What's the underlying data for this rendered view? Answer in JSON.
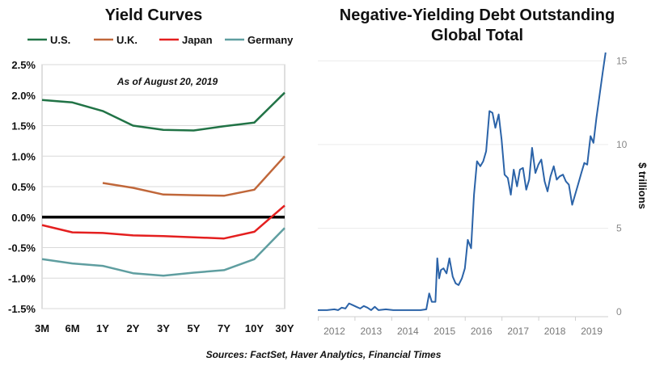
{
  "chart_data": [
    {
      "type": "line",
      "title": "Yield Curves",
      "annotation": "As of August 20, 2019",
      "categories": [
        "3M",
        "6M",
        "1Y",
        "2Y",
        "3Y",
        "5Y",
        "7Y",
        "10Y",
        "30Y"
      ],
      "ylim": [
        -1.5,
        2.5
      ],
      "yticks": [
        2.5,
        2.0,
        1.5,
        1.0,
        0.5,
        0.0,
        -0.5,
        -1.0,
        -1.5
      ],
      "ytick_labels": [
        "2.5%",
        "2.0%",
        "1.5%",
        "1.0%",
        "0.5%",
        "0.0%",
        "-0.5%",
        "-1.0%",
        "-1.5%"
      ],
      "grid": true,
      "legend_position": "top",
      "series": [
        {
          "name": "U.S.",
          "color": "#217346",
          "values": [
            1.92,
            1.88,
            1.74,
            1.5,
            1.43,
            1.42,
            1.49,
            1.55,
            2.04
          ]
        },
        {
          "name": "U.K.",
          "color": "#c0673a",
          "values": [
            null,
            null,
            0.56,
            0.48,
            0.37,
            0.36,
            0.35,
            0.45,
            1.0
          ]
        },
        {
          "name": "Japan",
          "color": "#e41f1f",
          "values": [
            -0.13,
            -0.25,
            -0.26,
            -0.3,
            -0.31,
            -0.33,
            -0.35,
            -0.24,
            0.19
          ]
        },
        {
          "name": "Germany",
          "color": "#5f9ea0",
          "values": [
            -0.69,
            -0.76,
            -0.8,
            -0.92,
            -0.96,
            -0.91,
            -0.87,
            -0.69,
            -0.18
          ]
        }
      ]
    },
    {
      "type": "line",
      "title": "Negative-Yielding Debt Outstanding\nGlobal Total",
      "title_lines": [
        "Negative-Yielding Debt Outstanding",
        "Global Total"
      ],
      "ylabel": "$ trillions",
      "ylim": [
        0,
        15.5
      ],
      "yticks": [
        0,
        5,
        10,
        15
      ],
      "xlim": [
        2011.75,
        2019.65
      ],
      "xticks": [
        "2012",
        "2013",
        "2014",
        "2015",
        "2016",
        "2017",
        "2018",
        "2019"
      ],
      "color": "#2b63a8",
      "series": [
        {
          "x": [
            2011.75,
            2012.0,
            2012.2,
            2012.3,
            2012.4,
            2012.5,
            2012.6,
            2012.7,
            2012.8,
            2012.9,
            2013.0,
            2013.1,
            2013.2,
            2013.3,
            2013.4,
            2013.6,
            2013.8,
            2014.0,
            2014.2,
            2014.4,
            2014.55,
            2014.7,
            2014.78,
            2014.85,
            2014.95,
            2015.0,
            2015.05,
            2015.1,
            2015.17,
            2015.25,
            2015.33,
            2015.42,
            2015.5,
            2015.58,
            2015.67,
            2015.75,
            2015.83,
            2015.92,
            2016.0,
            2016.08,
            2016.17,
            2016.25,
            2016.33,
            2016.42,
            2016.5,
            2016.58,
            2016.67,
            2016.75,
            2016.83,
            2016.92,
            2017.0,
            2017.08,
            2017.17,
            2017.25,
            2017.33,
            2017.42,
            2017.5,
            2017.58,
            2017.67,
            2017.75,
            2017.83,
            2017.92,
            2018.0,
            2018.08,
            2018.17,
            2018.25,
            2018.33,
            2018.42,
            2018.5,
            2018.58,
            2018.67,
            2018.75,
            2018.83,
            2018.92,
            2019.0,
            2019.08,
            2019.17,
            2019.25,
            2019.33,
            2019.42,
            2019.5,
            2019.58
          ],
          "y": [
            0.1,
            0.1,
            0.15,
            0.1,
            0.25,
            0.2,
            0.5,
            0.4,
            0.3,
            0.2,
            0.35,
            0.25,
            0.1,
            0.3,
            0.1,
            0.15,
            0.1,
            0.1,
            0.1,
            0.1,
            0.1,
            0.15,
            1.1,
            0.6,
            0.6,
            3.2,
            2.0,
            2.5,
            2.6,
            2.3,
            3.2,
            2.1,
            1.7,
            1.6,
            2.0,
            2.6,
            4.3,
            3.8,
            7.0,
            9.0,
            8.7,
            9.0,
            9.6,
            12.0,
            11.9,
            11.0,
            11.8,
            10.3,
            8.2,
            8.0,
            7.0,
            8.5,
            7.5,
            8.5,
            8.6,
            7.3,
            7.9,
            9.8,
            8.3,
            8.8,
            9.1,
            7.8,
            7.2,
            8.1,
            8.7,
            7.9,
            8.1,
            8.2,
            7.8,
            7.6,
            6.4,
            7.0,
            7.6,
            8.3,
            8.9,
            8.8,
            10.5,
            10.1,
            11.6,
            13.0,
            14.3,
            15.5
          ]
        }
      ]
    }
  ],
  "source": "Sources: FactSet, Haver Analytics, Financial Times"
}
